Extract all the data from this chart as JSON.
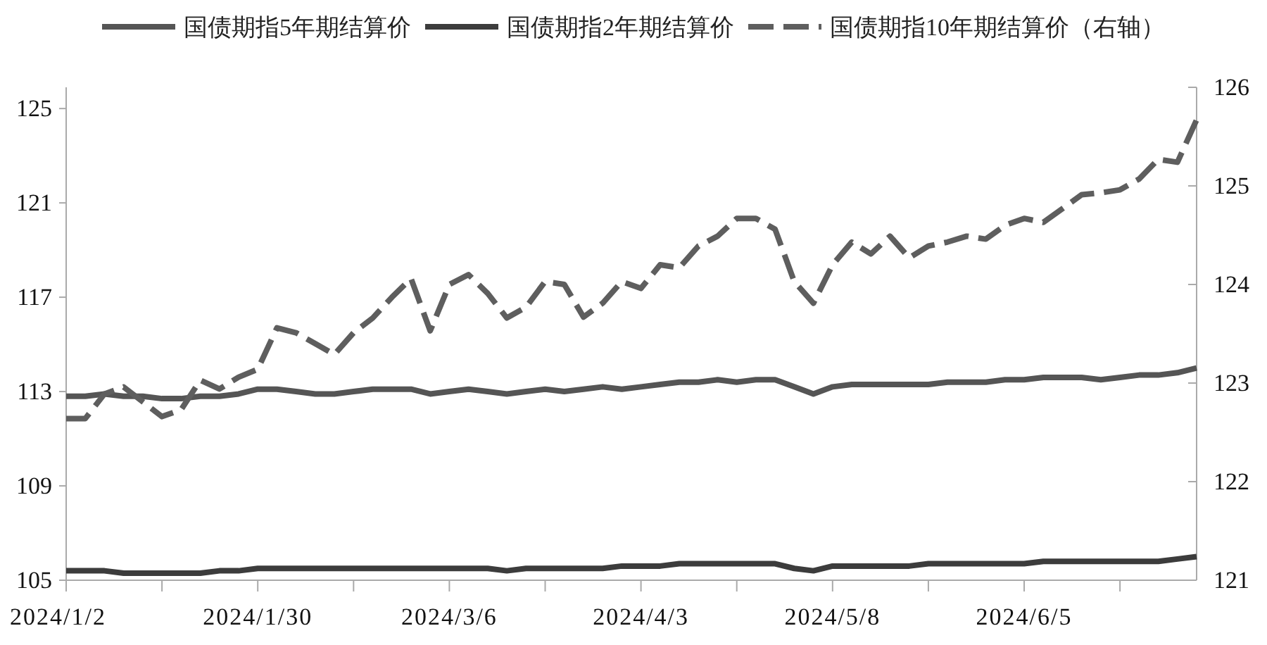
{
  "chart_data": {
    "type": "line",
    "categories": [
      "2024/1/2",
      null,
      null,
      null,
      null,
      null,
      null,
      null,
      null,
      null,
      "2024/1/30",
      null,
      null,
      null,
      null,
      null,
      null,
      null,
      null,
      null,
      "2024/3/6",
      null,
      null,
      null,
      null,
      null,
      null,
      null,
      null,
      null,
      "2024/4/3",
      null,
      null,
      null,
      null,
      null,
      null,
      null,
      null,
      null,
      "2024/5/8",
      null,
      null,
      null,
      null,
      null,
      null,
      null,
      null,
      null,
      "2024/6/5",
      null,
      null,
      null,
      null,
      null,
      null,
      null,
      null,
      null
    ],
    "series": [
      {
        "name": "国债期指5年期结算价",
        "color": "#555555",
        "line_style": "solid",
        "values": [
          112.8,
          112.8,
          112.9,
          112.8,
          112.8,
          112.7,
          112.7,
          112.8,
          112.8,
          112.9,
          113.1,
          113.1,
          113.0,
          112.9,
          112.9,
          113.0,
          113.1,
          113.1,
          113.1,
          112.9,
          113.0,
          113.1,
          113.0,
          112.9,
          113.0,
          113.1,
          113.0,
          113.1,
          113.2,
          113.1,
          113.2,
          113.3,
          113.4,
          113.4,
          113.5,
          113.4,
          113.5,
          113.5,
          113.2,
          112.9,
          113.2,
          113.3,
          113.3,
          113.3,
          113.3,
          113.3,
          113.4,
          113.4,
          113.4,
          113.5,
          113.5,
          113.6,
          113.6,
          113.6,
          113.5,
          113.6,
          113.7,
          113.7,
          113.8,
          114.0
        ]
      },
      {
        "name": "国债期指2年期结算价",
        "color": "#3c3c3c",
        "line_style": "solid",
        "values": [
          105.4,
          105.4,
          105.4,
          105.3,
          105.3,
          105.3,
          105.3,
          105.3,
          105.4,
          105.4,
          105.5,
          105.5,
          105.5,
          105.5,
          105.5,
          105.5,
          105.5,
          105.5,
          105.5,
          105.5,
          105.5,
          105.5,
          105.5,
          105.4,
          105.5,
          105.5,
          105.5,
          105.5,
          105.5,
          105.6,
          105.6,
          105.6,
          105.7,
          105.7,
          105.7,
          105.7,
          105.7,
          105.7,
          105.5,
          105.4,
          105.6,
          105.6,
          105.6,
          105.6,
          105.6,
          105.7,
          105.7,
          105.7,
          105.7,
          105.7,
          105.7,
          105.8,
          105.8,
          105.8,
          105.8,
          105.8,
          105.8,
          105.8,
          105.9,
          106.0
        ]
      },
      {
        "name": "国债期指10年期结算价（右轴）",
        "color": "#5e5e5e",
        "line_style": "dashed",
        "axis": "y2",
        "values": [
          122.64,
          122.64,
          122.89,
          122.96,
          122.81,
          122.66,
          122.73,
          123.03,
          122.94,
          123.06,
          123.14,
          123.56,
          123.51,
          123.4,
          123.29,
          123.51,
          123.66,
          123.87,
          124.06,
          123.53,
          124.0,
          124.1,
          123.91,
          123.66,
          123.77,
          124.03,
          124.0,
          123.67,
          123.81,
          124.03,
          123.96,
          124.2,
          124.17,
          124.39,
          124.49,
          124.67,
          124.67,
          124.56,
          124.03,
          123.81,
          124.2,
          124.43,
          124.31,
          124.49,
          124.27,
          124.39,
          124.43,
          124.49,
          124.46,
          124.6,
          124.67,
          124.63,
          124.77,
          124.91,
          124.93,
          124.96,
          125.07,
          125.27,
          125.24,
          125.67
        ]
      }
    ],
    "ylim": [
      105,
      125.9
    ],
    "yticks": [
      105,
      109,
      113,
      117,
      121,
      125
    ],
    "y2lim": [
      121,
      126
    ],
    "y2ticks": [
      121,
      122,
      123,
      124,
      125,
      126
    ],
    "legend": "top",
    "grid": false
  }
}
